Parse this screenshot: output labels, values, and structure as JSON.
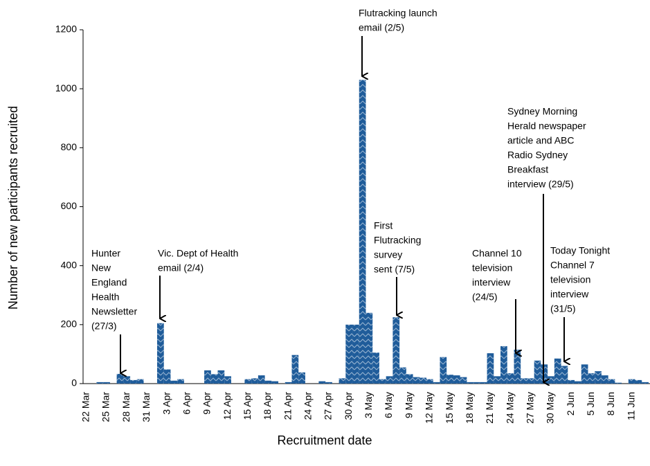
{
  "chart_data": {
    "type": "bar",
    "y_label": "Number of new participants recruited",
    "x_label": "Recruitment date",
    "categories": [
      "22 Mar",
      null,
      null,
      "25 Mar",
      null,
      null,
      "28 Mar",
      null,
      null,
      "31 Mar",
      null,
      null,
      "3 Apr",
      null,
      null,
      "6 Apr",
      null,
      null,
      "9 Apr",
      null,
      null,
      "12 Apr",
      null,
      null,
      "15 Apr",
      null,
      null,
      "18 Apr",
      null,
      null,
      "21 Apr",
      null,
      null,
      "24 Apr",
      null,
      null,
      "27 Apr",
      null,
      null,
      "30 Apr",
      null,
      null,
      "3 May",
      null,
      null,
      "6 May",
      null,
      null,
      "9 May",
      null,
      null,
      "12 May",
      null,
      null,
      "15 May",
      null,
      null,
      "18 May",
      null,
      null,
      "21 May",
      null,
      null,
      "24 May",
      null,
      null,
      "27 May",
      null,
      null,
      "30 May",
      null,
      null,
      "2 Jun",
      null,
      null,
      "5 Jun",
      null,
      null,
      "8 Jun",
      null,
      null,
      "11 Jun",
      null,
      null
    ],
    "values": [
      0,
      0,
      5,
      5,
      0,
      33,
      25,
      12,
      15,
      0,
      0,
      205,
      48,
      10,
      15,
      0,
      0,
      0,
      45,
      32,
      45,
      25,
      0,
      0,
      15,
      18,
      28,
      10,
      8,
      0,
      5,
      97,
      38,
      0,
      0,
      8,
      5,
      0,
      18,
      200,
      200,
      1030,
      240,
      105,
      15,
      25,
      225,
      55,
      32,
      22,
      20,
      15,
      5,
      90,
      30,
      28,
      22,
      5,
      5,
      5,
      103,
      25,
      127,
      35,
      115,
      18,
      18,
      78,
      65,
      25,
      85,
      60,
      12,
      8,
      65,
      35,
      42,
      28,
      15,
      3,
      0,
      15,
      12,
      5
    ],
    "color": "#1f5c9a",
    "ylim": [
      0,
      1200
    ],
    "yticks": [
      0,
      200,
      400,
      600,
      800,
      1000,
      1200
    ],
    "grid": false,
    "annotations": [
      [
        "Hunter",
        "New",
        "England",
        "Health",
        "Newsletter",
        "(27/3)"
      ],
      [
        "Vic. Dept of Health",
        "email (2/4)"
      ],
      [
        "Flutracking launch",
        "email (2/5)"
      ],
      [
        "First",
        "Flutracking",
        "survey",
        "sent (7/5)"
      ],
      [
        "Channel 10",
        "television",
        "interview",
        "(24/5)"
      ],
      [
        "Sydney Morning",
        "Herald newspaper",
        "article and ABC",
        "Radio Sydney",
        "Breakfast",
        "interview (29/5)"
      ],
      [
        "Today Tonight",
        "Channel 7",
        "television",
        "interview",
        "(31/5)"
      ]
    ]
  }
}
